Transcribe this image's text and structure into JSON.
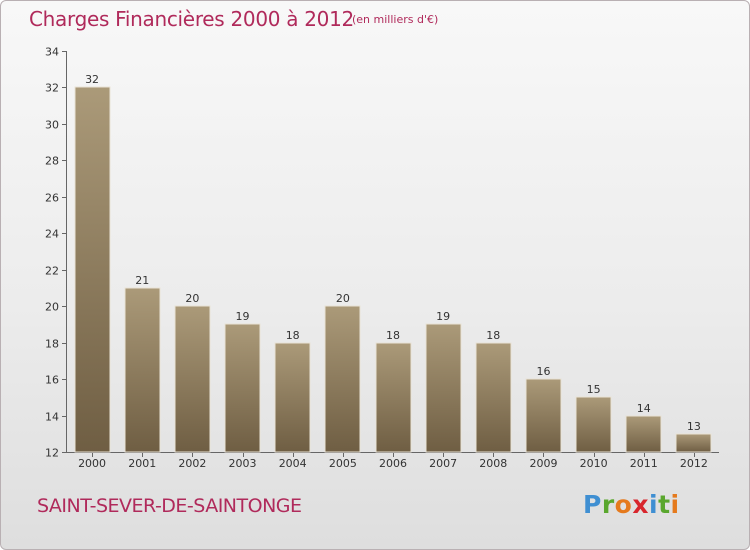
{
  "header": {
    "title": "Charges Financières 2000 à 2012",
    "unit": "(en milliers d'€)"
  },
  "footer": {
    "commune": "SAINT-SEVER-DE-SAINTONGE",
    "logo_letters": [
      "P",
      "r",
      "o",
      "x",
      "i",
      "t",
      "i"
    ]
  },
  "colors": {
    "accent": "#b02a5b",
    "bar_light": "#ab9a79",
    "bar_dark": "#6f5e43",
    "logo": [
      "#3f8fd2",
      "#5aa72e",
      "#e57a1d",
      "#d8262d",
      "#3f8fd2",
      "#5aa72e",
      "#e57a1d"
    ]
  },
  "chart_data": {
    "type": "bar",
    "title": "Charges Financières 2000 à 2012",
    "subtitle": "(en milliers d'€)",
    "categories": [
      "2000",
      "2001",
      "2002",
      "2003",
      "2004",
      "2005",
      "2006",
      "2007",
      "2008",
      "2009",
      "2010",
      "2011",
      "2012"
    ],
    "values": [
      32,
      21,
      20,
      19,
      18,
      20,
      18,
      19,
      18,
      16,
      15,
      14,
      13
    ],
    "ylim": [
      12,
      34
    ],
    "yticks": [
      12,
      14,
      16,
      18,
      20,
      22,
      24,
      26,
      28,
      30,
      32,
      34
    ],
    "xlabel": "",
    "ylabel": "",
    "grid": false,
    "legend": "none"
  }
}
